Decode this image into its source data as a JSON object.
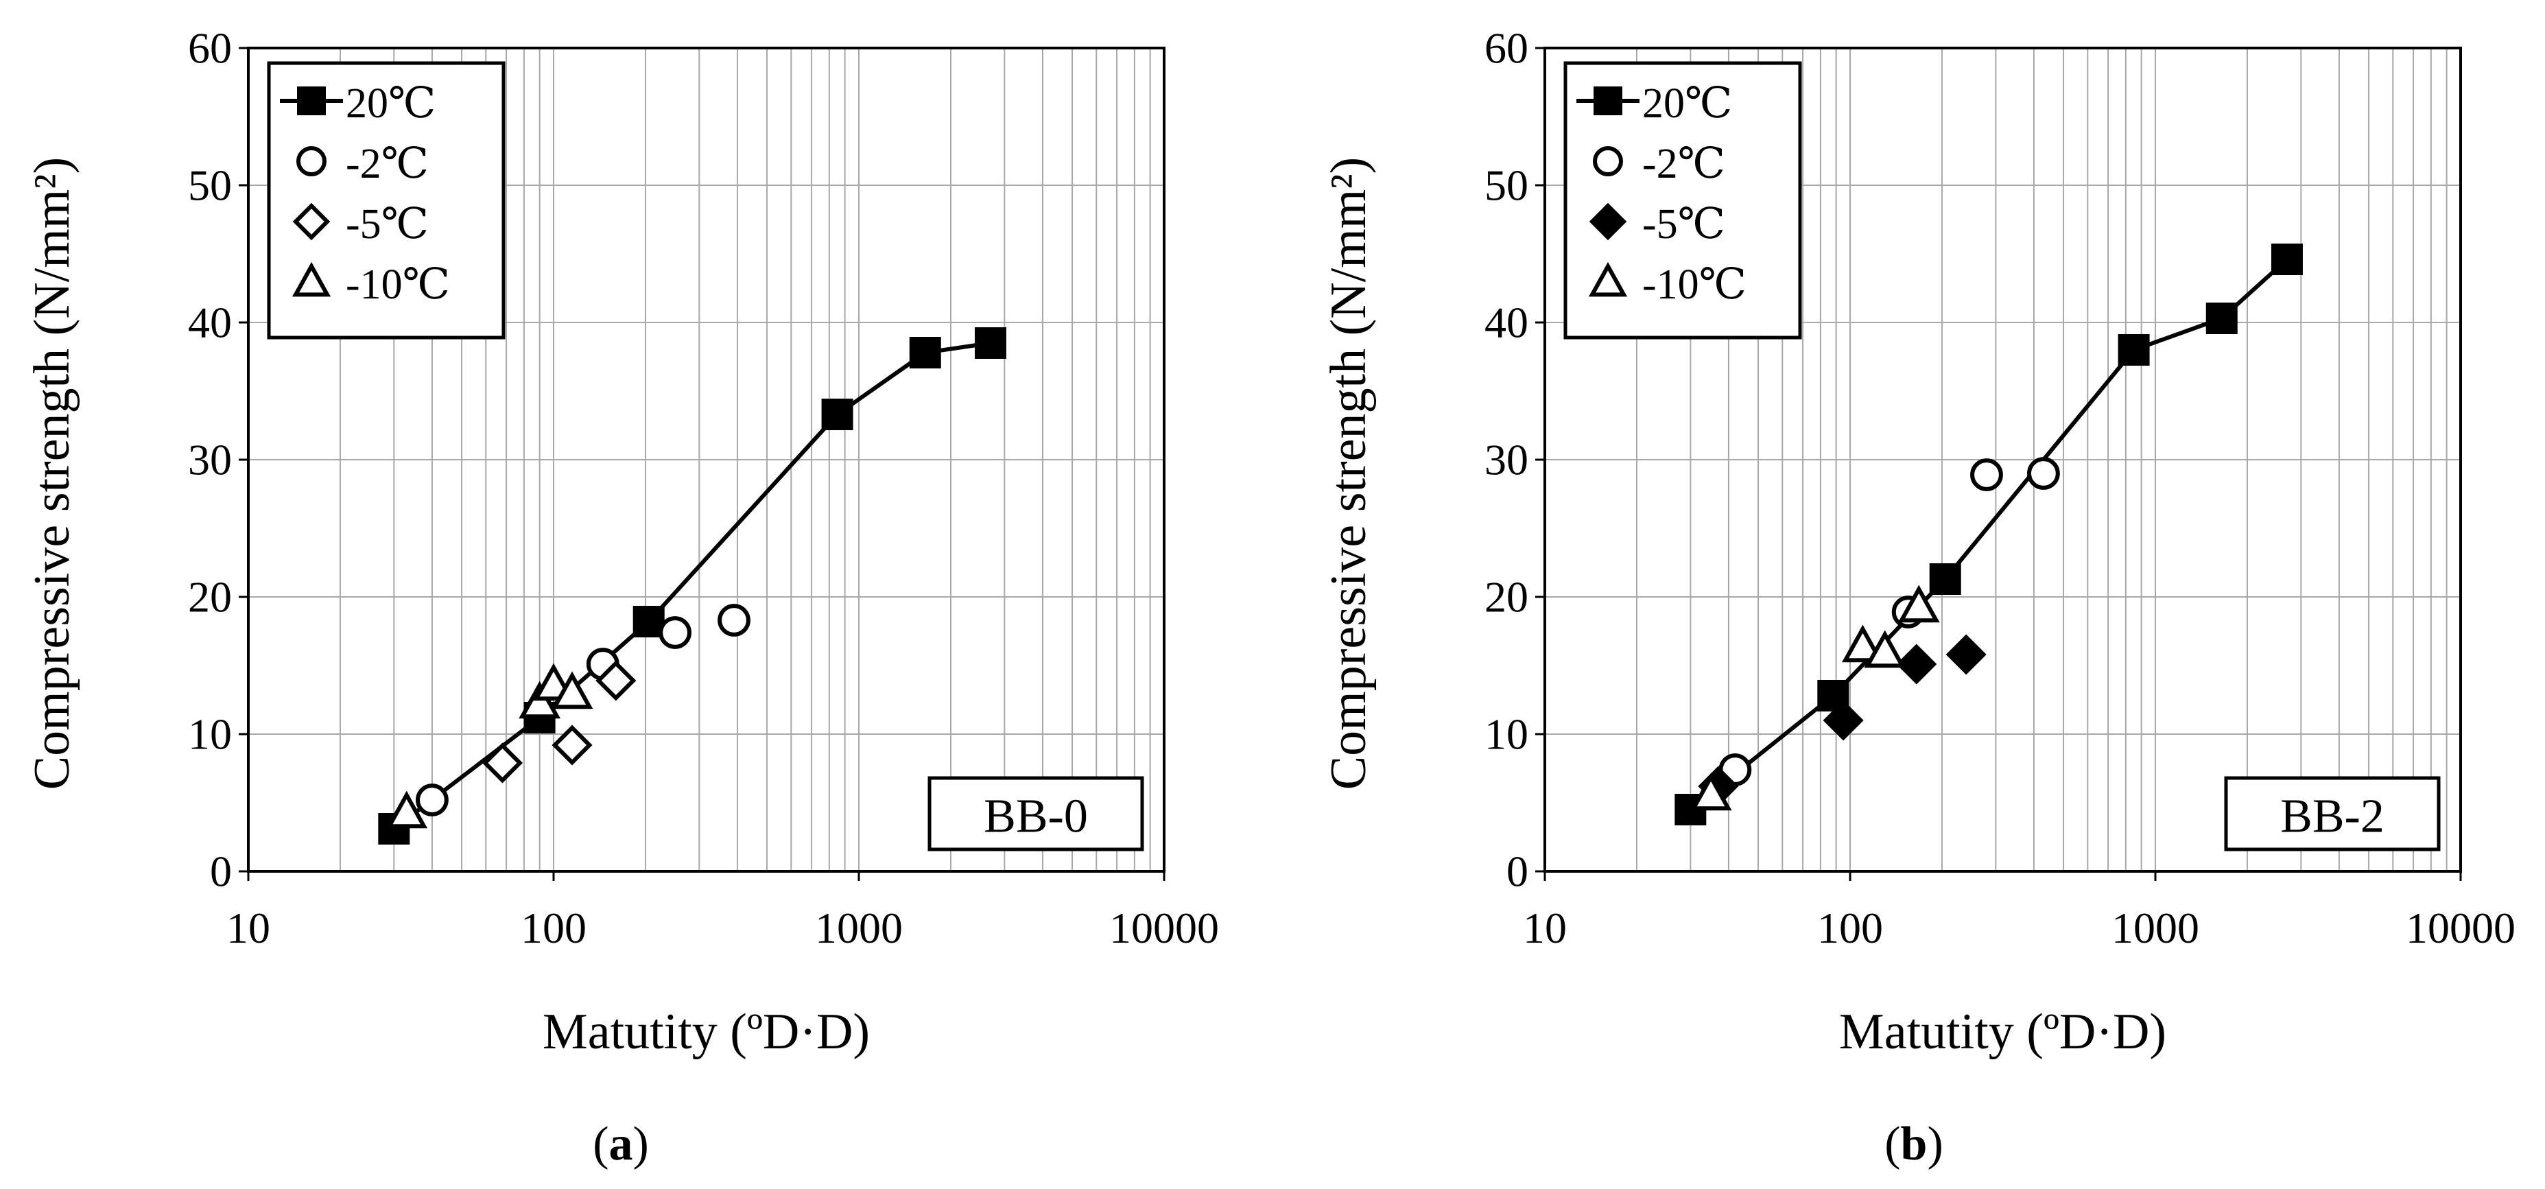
{
  "chart_data": [
    {
      "type": "scatter",
      "panel_tag": "BB-0",
      "caption": "(a)",
      "caption_letter": "a",
      "xlabel": "Matutity (ºD·D)",
      "ylabel": "Compressive strength (N/mm²)",
      "xscale": "log",
      "xlim": [
        10,
        10000
      ],
      "ylim": [
        0,
        60
      ],
      "x_ticks": [
        "10",
        "100",
        "1000",
        "10000"
      ],
      "y_ticks": [
        "0",
        "10",
        "20",
        "30",
        "40",
        "50",
        "60"
      ],
      "grid": true,
      "legend_position": "top-left",
      "series": [
        {
          "name": "20℃",
          "marker": "square",
          "filled": true,
          "line": true,
          "x": [
            30,
            90,
            205,
            850,
            1650,
            2700
          ],
          "y": [
            3.1,
            11.2,
            18.2,
            33.3,
            37.8,
            38.5
          ]
        },
        {
          "name": "-2℃",
          "marker": "circle",
          "filled": false,
          "line": false,
          "x": [
            40,
            145,
            250,
            390
          ],
          "y": [
            5.2,
            15.1,
            17.4,
            18.3
          ]
        },
        {
          "name": "-5℃",
          "marker": "diamond",
          "filled": false,
          "line": false,
          "x": [
            68,
            115,
            160
          ],
          "y": [
            7.9,
            9.2,
            13.9
          ]
        },
        {
          "name": "-10℃",
          "marker": "triangle",
          "filled": false,
          "line": false,
          "x": [
            33,
            90,
            100,
            115
          ],
          "y": [
            4.3,
            12.3,
            13.6,
            13.0
          ]
        }
      ]
    },
    {
      "type": "scatter",
      "panel_tag": "BB-2",
      "caption": "(b)",
      "caption_letter": "b",
      "xlabel": "Matutity (ºD·D)",
      "ylabel": "Compressive strength (N/mm²)",
      "xscale": "log",
      "xlim": [
        10,
        10000
      ],
      "ylim": [
        0,
        60
      ],
      "x_ticks": [
        "10",
        "100",
        "1000",
        "10000"
      ],
      "y_ticks": [
        "0",
        "10",
        "20",
        "30",
        "40",
        "50",
        "60"
      ],
      "grid": true,
      "legend_position": "top-left",
      "series": [
        {
          "name": "20℃",
          "marker": "square",
          "filled": true,
          "line": true,
          "x": [
            30,
            88,
            205,
            850,
            1650,
            2700
          ],
          "y": [
            4.5,
            12.8,
            21.3,
            38.0,
            40.3,
            44.6
          ]
        },
        {
          "name": "-2℃",
          "marker": "circle",
          "filled": false,
          "line": false,
          "x": [
            42,
            155,
            280,
            430
          ],
          "y": [
            7.4,
            18.9,
            28.9,
            29.0
          ]
        },
        {
          "name": "-5℃",
          "marker": "diamond",
          "filled": true,
          "line": false,
          "x": [
            37,
            95,
            165,
            240
          ],
          "y": [
            6.2,
            11.0,
            15.1,
            15.8
          ]
        },
        {
          "name": "-10℃",
          "marker": "triangle",
          "filled": false,
          "line": false,
          "x": [
            35,
            110,
            130,
            168
          ],
          "y": [
            5.6,
            16.4,
            16.0,
            19.3
          ]
        }
      ]
    }
  ]
}
